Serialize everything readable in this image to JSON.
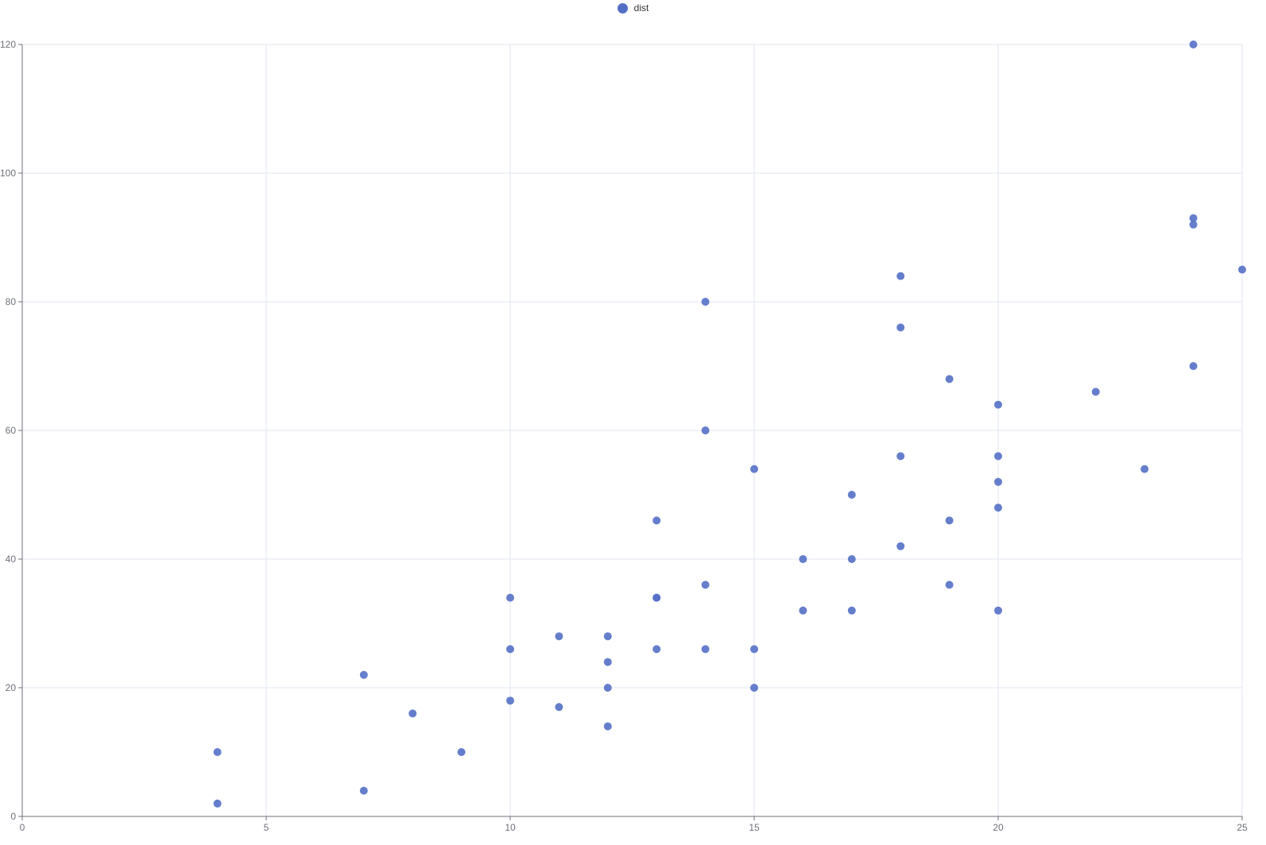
{
  "chart_data": {
    "type": "scatter",
    "title": "",
    "xlabel": "",
    "ylabel": "",
    "xlim": [
      0,
      25
    ],
    "ylim": [
      0,
      120
    ],
    "x_ticks": [
      0,
      5,
      10,
      15,
      20,
      25
    ],
    "y_ticks": [
      0,
      20,
      40,
      60,
      80,
      100,
      120
    ],
    "grid": true,
    "legend_position": "top-center",
    "colors": {
      "grid_line": "#E0E6F1",
      "axis_line": "#6E7079",
      "axis_label": "#6E7079",
      "legend_text": "#333333"
    },
    "series": [
      {
        "name": "dist",
        "color": "#5470C6",
        "opacity": 0.9,
        "point_radius": 5,
        "points": [
          [
            4,
            2
          ],
          [
            4,
            10
          ],
          [
            7,
            4
          ],
          [
            7,
            22
          ],
          [
            8,
            16
          ],
          [
            9,
            10
          ],
          [
            10,
            18
          ],
          [
            10,
            26
          ],
          [
            10,
            34
          ],
          [
            11,
            17
          ],
          [
            11,
            28
          ],
          [
            12,
            14
          ],
          [
            12,
            20
          ],
          [
            12,
            24
          ],
          [
            12,
            28
          ],
          [
            13,
            26
          ],
          [
            13,
            34
          ],
          [
            13,
            34
          ],
          [
            13,
            46
          ],
          [
            14,
            26
          ],
          [
            14,
            36
          ],
          [
            14,
            60
          ],
          [
            14,
            80
          ],
          [
            15,
            20
          ],
          [
            15,
            26
          ],
          [
            15,
            54
          ],
          [
            16,
            32
          ],
          [
            16,
            40
          ],
          [
            17,
            32
          ],
          [
            17,
            40
          ],
          [
            17,
            50
          ],
          [
            18,
            42
          ],
          [
            18,
            56
          ],
          [
            18,
            76
          ],
          [
            18,
            84
          ],
          [
            19,
            36
          ],
          [
            19,
            46
          ],
          [
            19,
            68
          ],
          [
            20,
            32
          ],
          [
            20,
            48
          ],
          [
            20,
            52
          ],
          [
            20,
            56
          ],
          [
            20,
            64
          ],
          [
            22,
            66
          ],
          [
            23,
            54
          ],
          [
            24,
            70
          ],
          [
            24,
            92
          ],
          [
            24,
            93
          ],
          [
            24,
            120
          ],
          [
            25,
            85
          ]
        ]
      }
    ]
  }
}
